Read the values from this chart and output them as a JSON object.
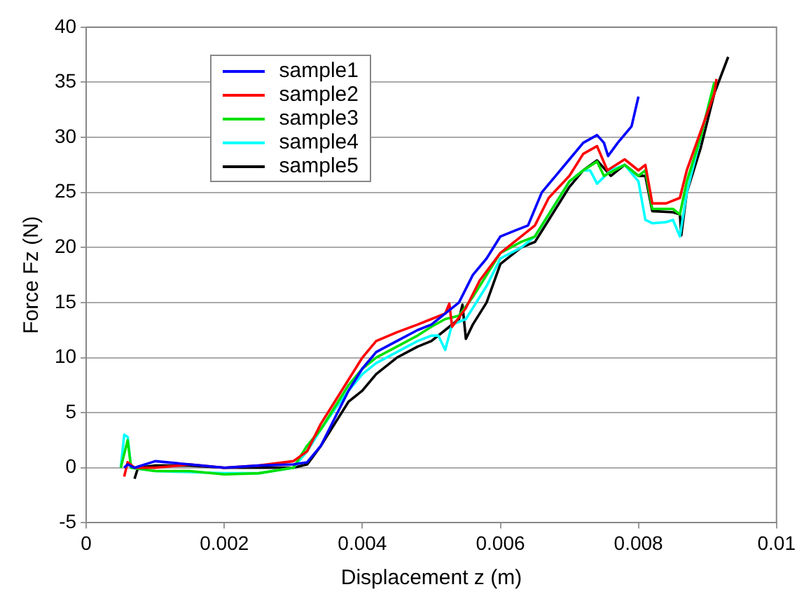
{
  "chart_data": {
    "type": "line",
    "xlabel": "Displacement z (m)",
    "ylabel": "Force Fz (N)",
    "xlim": [
      0,
      0.01
    ],
    "xticks": [
      0,
      0.002,
      0.004,
      0.006,
      0.008,
      0.01
    ],
    "ylim": [
      -5,
      40
    ],
    "yticks": [
      -5,
      0,
      5,
      10,
      15,
      20,
      25,
      30,
      35,
      40
    ],
    "grid": "y",
    "legend": "top left",
    "marker": "none",
    "line_style": "solid",
    "series": [
      {
        "name": "sample1",
        "color": "#0000ff",
        "x": [
          0.00055,
          0.0006,
          0.0007,
          0.001,
          0.0015,
          0.002,
          0.0025,
          0.003,
          0.0032,
          0.0034,
          0.0036,
          0.0038,
          0.004,
          0.0042,
          0.0045,
          0.0048,
          0.005,
          0.0052,
          0.0054,
          0.0056,
          0.0058,
          0.006,
          0.0062,
          0.0064,
          0.0066,
          0.0068,
          0.007,
          0.0072,
          0.0074,
          0.0075,
          0.00756,
          0.0077,
          0.0079,
          0.008
        ],
        "values": [
          0,
          0.3,
          0,
          0.6,
          0.3,
          0,
          0.2,
          0.3,
          0.5,
          2,
          4.5,
          7,
          9,
          10.5,
          11.5,
          12.5,
          13,
          14,
          15,
          17.5,
          19,
          21,
          21.5,
          22,
          25,
          26.5,
          28,
          29.5,
          30.2,
          29.5,
          28.3,
          29.5,
          31,
          33.7
        ]
      },
      {
        "name": "sample2",
        "color": "#ff0000",
        "x": [
          0.00055,
          0.0006,
          0.0007,
          0.001,
          0.0015,
          0.002,
          0.0025,
          0.003,
          0.0032,
          0.0034,
          0.0036,
          0.0038,
          0.004,
          0.0042,
          0.0045,
          0.0048,
          0.005,
          0.0052,
          0.00526,
          0.0053,
          0.0055,
          0.0057,
          0.006,
          0.0063,
          0.0065,
          0.0067,
          0.007,
          0.0072,
          0.0074,
          0.00755,
          0.0078,
          0.008,
          0.0081,
          0.0082,
          0.0084,
          0.0086,
          0.0087,
          0.0089,
          0.0091,
          0.00913
        ],
        "values": [
          -0.8,
          0.5,
          0,
          0,
          0.3,
          0,
          0.2,
          0.6,
          1.5,
          4,
          6,
          8,
          10,
          11.5,
          12.3,
          13,
          13.5,
          14,
          14.9,
          12.8,
          14.5,
          17,
          19.5,
          21,
          22,
          24.5,
          26.5,
          28.5,
          29.2,
          27,
          28,
          27,
          27.5,
          24,
          24,
          24.5,
          27,
          30.5,
          34,
          35.3
        ]
      },
      {
        "name": "sample3",
        "color": "#00e000",
        "x": [
          0.0005,
          0.0006,
          0.00065,
          0.001,
          0.0015,
          0.002,
          0.0025,
          0.003,
          0.0032,
          0.0034,
          0.0036,
          0.0038,
          0.004,
          0.0042,
          0.0045,
          0.0048,
          0.005,
          0.0052,
          0.0054,
          0.0056,
          0.0058,
          0.006,
          0.0063,
          0.0065,
          0.0068,
          0.007,
          0.0072,
          0.0074,
          0.0075,
          0.00765,
          0.0078,
          0.008,
          0.0081,
          0.0082,
          0.0085,
          0.0086,
          0.0087,
          0.0089,
          0.0091
        ],
        "values": [
          0,
          2.5,
          0,
          -0.3,
          -0.3,
          -0.6,
          -0.5,
          0,
          2,
          3.5,
          5.5,
          7.5,
          9,
          10,
          11,
          12,
          12.8,
          13.5,
          13.8,
          15.5,
          17.5,
          19.5,
          20.5,
          21,
          24,
          26,
          27,
          27.8,
          26.5,
          27,
          27.5,
          26.5,
          27,
          23.5,
          23.5,
          23,
          26,
          30,
          35
        ]
      },
      {
        "name": "sample4",
        "color": "#00ffff",
        "x": [
          0.0005,
          0.00055,
          0.0006,
          0.00065,
          0.001,
          0.0015,
          0.002,
          0.0025,
          0.003,
          0.0032,
          0.0034,
          0.0036,
          0.0038,
          0.004,
          0.0042,
          0.0045,
          0.0048,
          0.005,
          0.0051,
          0.0052,
          0.0053,
          0.0055,
          0.0058,
          0.006,
          0.0063,
          0.0065,
          0.0068,
          0.007,
          0.0072,
          0.0073,
          0.0074,
          0.0076,
          0.0078,
          0.008,
          0.0081,
          0.0082,
          0.0084,
          0.0085,
          0.0086,
          0.0087,
          0.0089,
          0.0091
        ],
        "values": [
          0,
          3,
          2.8,
          0,
          -0.3,
          -0.4,
          -0.5,
          -0.5,
          0,
          1.5,
          3.5,
          5.3,
          7,
          8.5,
          9.5,
          10.5,
          11.5,
          12,
          12,
          10.7,
          13,
          13.5,
          16.5,
          19,
          20,
          21,
          24,
          26,
          27,
          27,
          25.8,
          27,
          27.5,
          26,
          22.5,
          22.2,
          22.3,
          22.5,
          21,
          25,
          30,
          35
        ]
      },
      {
        "name": "sample5",
        "color": "#000000",
        "x": [
          0.0007,
          0.00075,
          0.001,
          0.0015,
          0.002,
          0.0025,
          0.003,
          0.0032,
          0.0034,
          0.0036,
          0.0038,
          0.004,
          0.0042,
          0.0045,
          0.0048,
          0.005,
          0.0052,
          0.0054,
          0.00545,
          0.0055,
          0.0056,
          0.0058,
          0.006,
          0.0063,
          0.0065,
          0.0067,
          0.007,
          0.0072,
          0.0074,
          0.0076,
          0.0078,
          0.008,
          0.0081,
          0.0082,
          0.0085,
          0.0086,
          0.00862,
          0.0087,
          0.0089,
          0.0091,
          0.0093
        ],
        "values": [
          -1,
          0,
          0.2,
          0.2,
          0,
          0,
          0,
          0.3,
          2,
          4,
          6,
          7,
          8.5,
          10,
          11,
          11.5,
          12.5,
          13.5,
          14.8,
          11.7,
          13,
          15,
          18.5,
          20,
          20.5,
          22.5,
          25.5,
          27,
          27.9,
          26.5,
          27.5,
          26.5,
          26.5,
          23.3,
          23.2,
          23,
          21.1,
          25,
          29,
          34,
          37.3
        ]
      }
    ]
  }
}
